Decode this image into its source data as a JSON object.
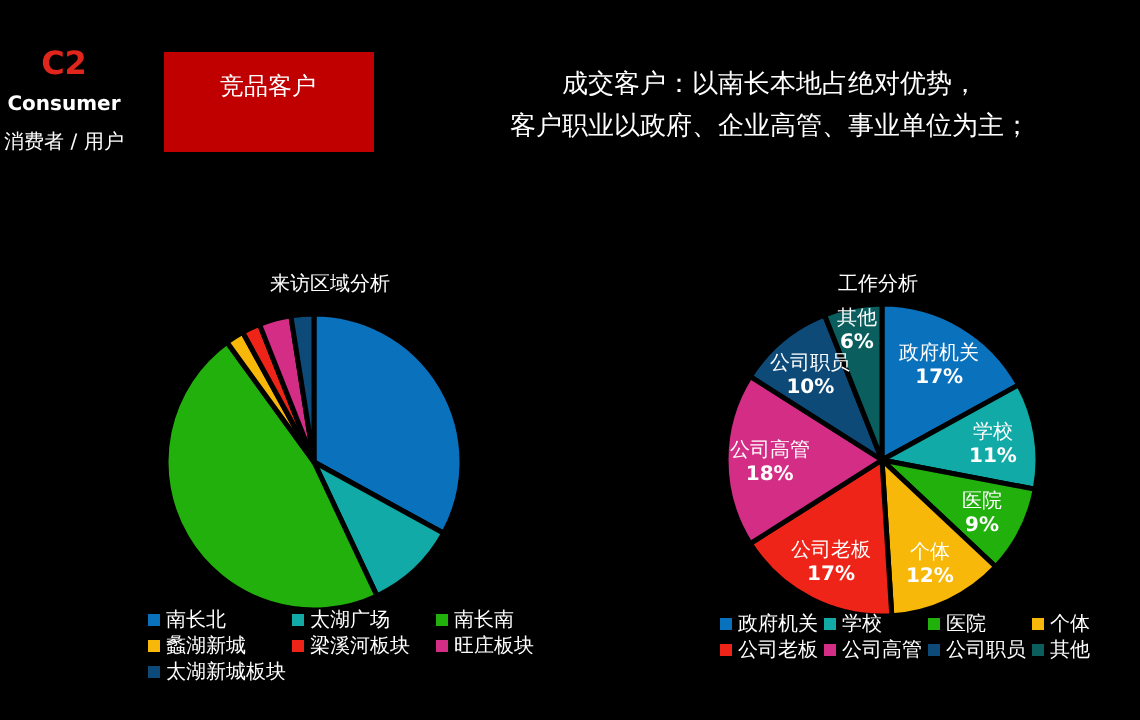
{
  "chart_data": [
    {
      "type": "other",
      "annotations": [
        "C2",
        "Consumer",
        "消费者 / 用户",
        "竞品客户",
        "成交客户：以南长本地占绝对优势，",
        "客户职业以政府、企业高管、事业单位为主；"
      ]
    },
    {
      "type": "pie",
      "title": "来访区域分析",
      "legend": "bottom",
      "categories": [
        "南长北",
        "太湖广场",
        "南长南",
        "蠡湖新城",
        "梁溪河板块",
        "旺庄板块",
        "太湖新城板块"
      ],
      "values": [
        33,
        10,
        47,
        2,
        2,
        3.5,
        2.5
      ],
      "colors": [
        "#0a72bd",
        "#11aaa6",
        "#22b00c",
        "#f7b80a",
        "#ee2418",
        "#d42d86",
        "#0d4a78"
      ]
    },
    {
      "type": "pie",
      "title": "工作分析",
      "legend": "bottom",
      "value_labels": [
        "17%",
        "11%",
        "9%",
        "12%",
        "17%",
        "18%",
        "10%",
        "6%"
      ],
      "categories": [
        "政府机关",
        "学校",
        "医院",
        "个体",
        "公司老板",
        "公司高管",
        "公司职员",
        "其他"
      ],
      "values": [
        17,
        11,
        9,
        12,
        17,
        18,
        10,
        6
      ],
      "colors": [
        "#0a72bd",
        "#11aaa6",
        "#22b00c",
        "#f7b80a",
        "#ee2418",
        "#d42d86",
        "#0d4a78",
        "#0b5e5e"
      ]
    }
  ]
}
